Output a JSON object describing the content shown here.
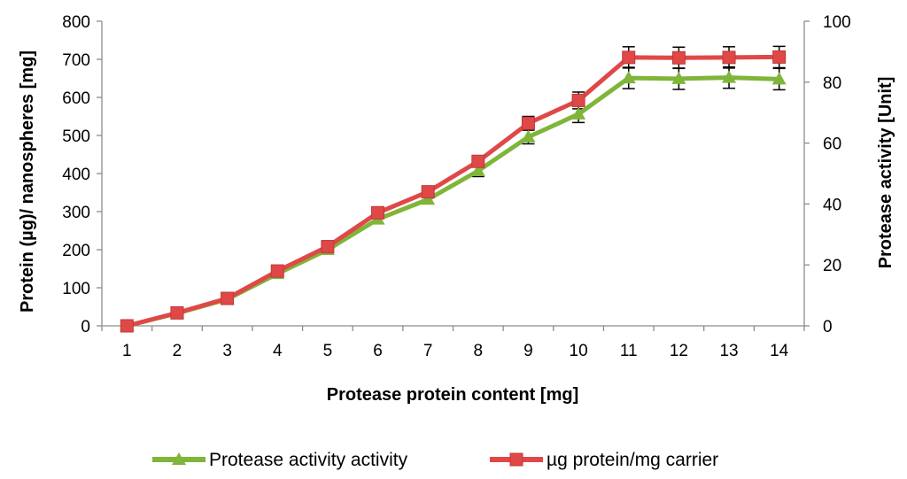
{
  "chart_data": {
    "type": "line",
    "title": "",
    "xlabel": "Protease protein content [mg]",
    "ylabel": "Protein (µg)/ nanospheres [mg]",
    "y2label": "Protease activity [Unit]",
    "categories": [
      "1",
      "2",
      "3",
      "4",
      "5",
      "6",
      "7",
      "8",
      "9",
      "10",
      "11",
      "12",
      "13",
      "14"
    ],
    "ylim": [
      0,
      800
    ],
    "yticks": [
      0,
      100,
      200,
      300,
      400,
      500,
      600,
      700,
      800
    ],
    "y2lim": [
      0,
      100
    ],
    "y2ticks": [
      0,
      20,
      40,
      60,
      80,
      100
    ],
    "grid": false,
    "legend_position": "bottom",
    "series": [
      {
        "name": "Protease activity activity",
        "color": "#7FB539",
        "marker": "triangle",
        "values": [
          0,
          33,
          70,
          137,
          200,
          280,
          332,
          407,
          496,
          556,
          651,
          649,
          652,
          648
        ],
        "errors": [
          0,
          0,
          0,
          0,
          0,
          0,
          0,
          15,
          18,
          22,
          28,
          28,
          28,
          28
        ]
      },
      {
        "name": "µg protein/mg carrier",
        "color": "#E04848",
        "marker": "square",
        "values": [
          0,
          34,
          72,
          144,
          208,
          297,
          352,
          432,
          532,
          592,
          705,
          704,
          705,
          706
        ],
        "errors": [
          0,
          0,
          0,
          0,
          0,
          0,
          0,
          15,
          18,
          22,
          28,
          28,
          28,
          28
        ]
      }
    ]
  }
}
